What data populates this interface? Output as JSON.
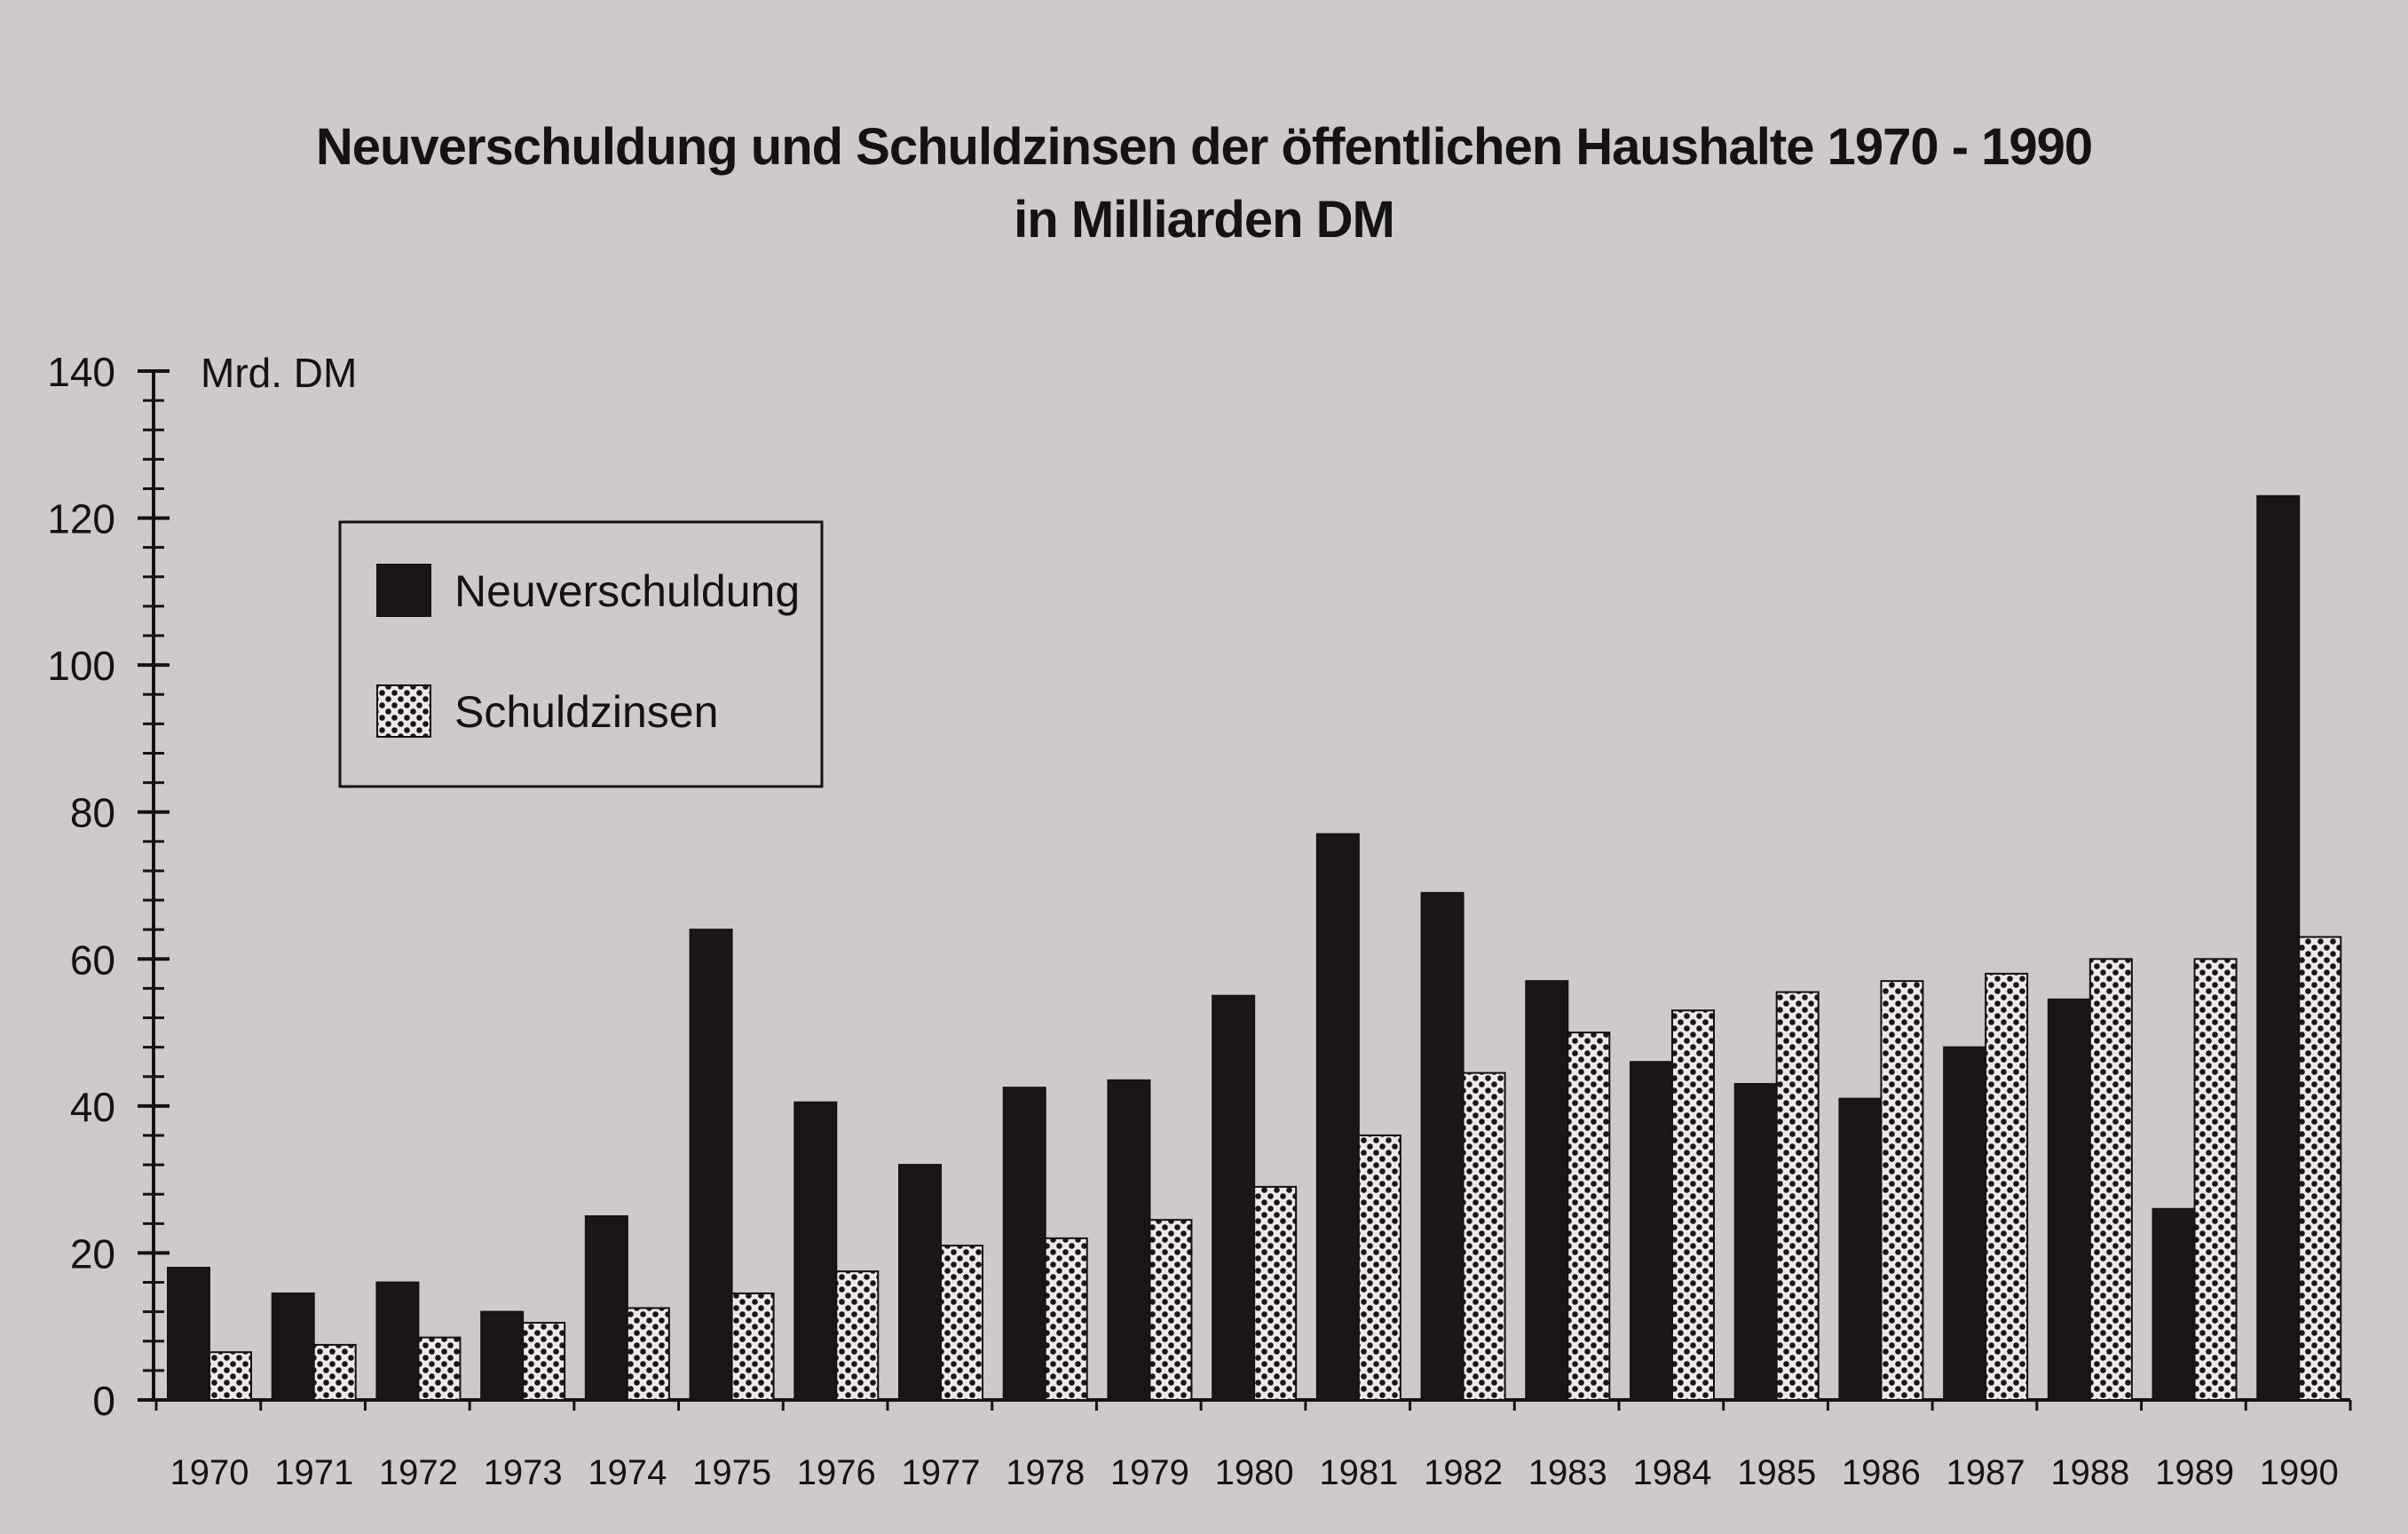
{
  "chart_data": {
    "type": "bar",
    "title": "Neuverschuldung  und Schuldzinsen der öffentlichen Haushalte 1970 - 1990",
    "subtitle": "in Milliarden DM",
    "ylabel": "Mrd. DM",
    "xlabel": "",
    "ylim": [
      0,
      140
    ],
    "yticks": [
      0,
      20,
      40,
      60,
      80,
      100,
      120,
      140
    ],
    "grid": false,
    "legend_position": "top-left",
    "categories": [
      "1970",
      "1971",
      "1972",
      "1973",
      "1974",
      "1975",
      "1976",
      "1977",
      "1978",
      "1979",
      "1980",
      "1981",
      "1982",
      "1983",
      "1984",
      "1985",
      "1986",
      "1987",
      "1988",
      "1989",
      "1990"
    ],
    "series": [
      {
        "name": "Neuverschuldung",
        "color": "#1a1618",
        "pattern": "solid",
        "values": [
          18,
          14.5,
          16,
          12,
          25,
          64,
          40.5,
          32,
          42.5,
          43.5,
          55,
          77,
          69,
          57,
          46,
          43,
          41,
          48,
          54.5,
          26,
          123
        ]
      },
      {
        "name": "Schuldzinsen",
        "color": "#ece8ec",
        "pattern": "dotted",
        "values": [
          6.5,
          7.5,
          8.5,
          10.5,
          12.5,
          14.5,
          17.5,
          21,
          22,
          24.5,
          29,
          36,
          44.5,
          50,
          53,
          55.5,
          57,
          58,
          60,
          60,
          63
        ]
      }
    ]
  }
}
